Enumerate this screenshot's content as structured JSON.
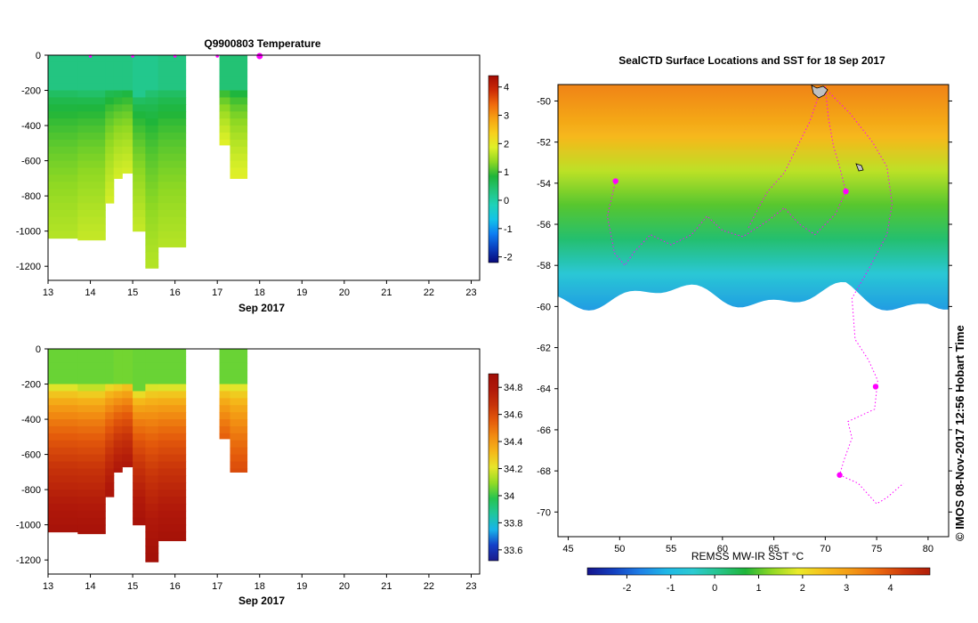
{
  "colors": {
    "temp_cmap": [
      "#08087a",
      "#0a3fbf",
      "#0d7ef2",
      "#13c3e8",
      "#1fd2b9",
      "#23c47c",
      "#1fb53a",
      "#8ed823",
      "#dff028",
      "#f7d01c",
      "#f7a313",
      "#f06a0c",
      "#cc2a06",
      "#a30b04"
    ],
    "sal_cmap": [
      "#1a1a8c",
      "#1340c8",
      "#18b4ea",
      "#20c69d",
      "#27c44f",
      "#93dc24",
      "#e7e52a",
      "#f5b719",
      "#f28c12",
      "#e45a0b",
      "#c7330a",
      "#b0180a",
      "#a00e07"
    ],
    "sst_cmap": [
      "#14148c",
      "#1440c0",
      "#1f7fe6",
      "#1fb7e6",
      "#2ccad2",
      "#27c48a",
      "#1fb53a",
      "#8fd824",
      "#eaea2a",
      "#f7be1c",
      "#f39a16",
      "#ec6b10",
      "#ce3a0b",
      "#b01e0a"
    ],
    "track": "#ff00ff",
    "land": "#c0c0c0"
  },
  "chart_data": [
    {
      "type": "heatmap",
      "title": "Q9900803  Temperature",
      "xlabel": "Sep 2017",
      "ylabel": "",
      "xlim": [
        13,
        23.2
      ],
      "ylim": [
        -1280,
        0
      ],
      "x_ticks": [
        "13",
        "14",
        "15",
        "16",
        "17",
        "18",
        "19",
        "20",
        "21",
        "22",
        "23"
      ],
      "y_ticks": [
        "0",
        "-200",
        "-400",
        "-600",
        "-800",
        "-1000",
        "-1200"
      ],
      "colorbar": {
        "min": -2.2,
        "max": 4.4,
        "ticks": [
          "-2",
          "-1",
          "0",
          "1",
          "2",
          "3",
          "4"
        ]
      },
      "profile_markers": [
        14.0,
        15.0,
        16.0,
        17.0,
        18.0
      ],
      "profiles": [
        {
          "x0": 13.0,
          "x1": 13.7,
          "depth": 1040,
          "surface": 0.3,
          "mixed_depth": 200,
          "deep": 1.6
        },
        {
          "x0": 13.7,
          "x1": 14.35,
          "depth": 1050,
          "surface": 0.3,
          "mixed_depth": 210,
          "deep": 1.7
        },
        {
          "x0": 14.35,
          "x1": 14.55,
          "depth": 840,
          "surface": 0.3,
          "mixed_depth": 190,
          "deep": 1.8
        },
        {
          "x0": 14.55,
          "x1": 14.75,
          "depth": 700,
          "surface": 0.3,
          "mixed_depth": 190,
          "deep": 1.8
        },
        {
          "x0": 14.75,
          "x1": 15.0,
          "depth": 670,
          "surface": 0.3,
          "mixed_depth": 180,
          "deep": 1.8
        },
        {
          "x0": 15.0,
          "x1": 15.3,
          "depth": 1000,
          "surface": 0.2,
          "mixed_depth": 230,
          "deep": 1.7
        },
        {
          "x0": 15.3,
          "x1": 15.6,
          "depth": 1210,
          "surface": 0.2,
          "mixed_depth": 200,
          "deep": 1.6
        },
        {
          "x0": 15.6,
          "x1": 16.25,
          "depth": 1090,
          "surface": 0.3,
          "mixed_depth": 200,
          "deep": 1.6
        },
        {
          "x0": 17.05,
          "x1": 17.3,
          "depth": 510,
          "surface": 0.4,
          "mixed_depth": 180,
          "deep": 1.9
        },
        {
          "x0": 17.3,
          "x1": 17.7,
          "depth": 700,
          "surface": 0.4,
          "mixed_depth": 190,
          "deep": 1.9
        }
      ]
    },
    {
      "type": "heatmap",
      "title": "",
      "xlabel": "Sep 2017",
      "ylabel": "",
      "xlim": [
        13,
        23.2
      ],
      "ylim": [
        -1280,
        0
      ],
      "x_ticks": [
        "13",
        "14",
        "15",
        "16",
        "17",
        "18",
        "19",
        "20",
        "21",
        "22",
        "23"
      ],
      "y_ticks": [
        "0",
        "-200",
        "-400",
        "-600",
        "-800",
        "-1000",
        "-1200"
      ],
      "colorbar": {
        "min": 33.52,
        "max": 34.9,
        "ticks": [
          "33.6",
          "33.8",
          "34",
          "34.2",
          "34.4",
          "34.6",
          "34.8"
        ]
      },
      "profiles": [
        {
          "x0": 13.0,
          "x1": 13.7,
          "depth": 1040,
          "surface": 34.05,
          "mixed_depth": 200,
          "deep": 34.85
        },
        {
          "x0": 13.7,
          "x1": 14.35,
          "depth": 1050,
          "surface": 34.05,
          "mixed_depth": 210,
          "deep": 34.85
        },
        {
          "x0": 14.35,
          "x1": 14.55,
          "depth": 840,
          "surface": 34.05,
          "mixed_depth": 190,
          "deep": 34.82
        },
        {
          "x0": 14.55,
          "x1": 14.75,
          "depth": 700,
          "surface": 34.06,
          "mixed_depth": 190,
          "deep": 34.8
        },
        {
          "x0": 14.75,
          "x1": 15.0,
          "depth": 670,
          "surface": 34.06,
          "mixed_depth": 180,
          "deep": 34.8
        },
        {
          "x0": 15.0,
          "x1": 15.3,
          "depth": 1000,
          "surface": 34.05,
          "mixed_depth": 230,
          "deep": 34.85
        },
        {
          "x0": 15.3,
          "x1": 15.6,
          "depth": 1210,
          "surface": 34.05,
          "mixed_depth": 200,
          "deep": 34.88
        },
        {
          "x0": 15.6,
          "x1": 16.25,
          "depth": 1090,
          "surface": 34.05,
          "mixed_depth": 200,
          "deep": 34.86
        },
        {
          "x0": 17.05,
          "x1": 17.3,
          "depth": 510,
          "surface": 34.05,
          "mixed_depth": 190,
          "deep": 34.55
        },
        {
          "x0": 17.3,
          "x1": 17.7,
          "depth": 700,
          "surface": 34.05,
          "mixed_depth": 190,
          "deep": 34.6
        }
      ]
    },
    {
      "type": "heatmap",
      "title": "SealCTD Surface Locations and SST for 18 Sep 2017",
      "xlabel": "",
      "ylabel": "",
      "xlim": [
        44,
        82
      ],
      "ylim": [
        -71.2,
        -49.2
      ],
      "x_ticks": [
        "45",
        "50",
        "55",
        "60",
        "65",
        "70",
        "75",
        "80"
      ],
      "y_ticks": [
        "-50",
        "-52",
        "-54",
        "-56",
        "-58",
        "-60",
        "-62",
        "-64",
        "-66",
        "-68",
        "-70"
      ],
      "colorbar": {
        "min": -2.9,
        "max": 4.9,
        "ticks": [
          "-2",
          "-1",
          "0",
          "1",
          "2",
          "3",
          "4"
        ],
        "label": "REMSS MW-IR SST °C"
      },
      "ice_edge_lat": -59.5,
      "sst_gradient": [
        {
          "lat": -49.2,
          "value": 3.4
        },
        {
          "lat": -51.5,
          "value": 2.6
        },
        {
          "lat": -53.0,
          "value": 1.6
        },
        {
          "lat": -54.5,
          "value": 1.0
        },
        {
          "lat": -56.0,
          "value": 0.3
        },
        {
          "lat": -57.5,
          "value": -0.6
        },
        {
          "lat": -59.5,
          "value": -1.5
        }
      ],
      "tracks": [
        [
          [
            70.0,
            -49.3
          ],
          [
            70.3,
            -50.8
          ],
          [
            70.8,
            -52.2
          ],
          [
            71.4,
            -53.2
          ],
          [
            72.0,
            -54.4
          ],
          [
            71.0,
            -55.5
          ],
          [
            69.0,
            -56.5
          ],
          [
            67.5,
            -56.0
          ],
          [
            66.0,
            -55.2
          ],
          [
            64.5,
            -55.8
          ],
          [
            62.0,
            -56.6
          ],
          [
            60.0,
            -56.3
          ],
          [
            58.5,
            -55.6
          ],
          [
            57.0,
            -56.5
          ],
          [
            55.0,
            -57.0
          ],
          [
            53.0,
            -56.5
          ],
          [
            51.5,
            -57.3
          ],
          [
            50.5,
            -58.0
          ],
          [
            49.5,
            -57.4
          ],
          [
            48.8,
            -55.6
          ],
          [
            49.6,
            -53.9
          ]
        ],
        [
          [
            69.6,
            -49.4
          ],
          [
            68.5,
            -51.0
          ],
          [
            67.2,
            -52.3
          ],
          [
            66.0,
            -53.5
          ],
          [
            64.4,
            -54.4
          ],
          [
            63.5,
            -55.2
          ],
          [
            62.5,
            -56.2
          ]
        ],
        [
          [
            70.4,
            -49.6
          ],
          [
            72.4,
            -50.6
          ],
          [
            74.6,
            -52.0
          ],
          [
            76.0,
            -53.2
          ],
          [
            76.5,
            -55.0
          ],
          [
            76.0,
            -56.5
          ],
          [
            74.2,
            -58.2
          ],
          [
            72.6,
            -59.6
          ],
          [
            72.9,
            -61.6
          ],
          [
            74.2,
            -62.6
          ],
          [
            75.1,
            -63.6
          ],
          [
            74.8,
            -65.0
          ],
          [
            72.2,
            -65.6
          ],
          [
            72.6,
            -66.4
          ],
          [
            71.8,
            -67.5
          ],
          [
            71.4,
            -68.2
          ],
          [
            73.2,
            -68.6
          ],
          [
            75.0,
            -69.6
          ],
          [
            76.0,
            -69.3
          ],
          [
            77.6,
            -68.6
          ]
        ]
      ],
      "surface_locations": [
        [
          49.6,
          -53.9
        ],
        [
          71.4,
          -68.2
        ],
        [
          74.9,
          -63.9
        ],
        [
          72.0,
          -54.4
        ]
      ]
    }
  ],
  "footer": {
    "timestamp": "© IMOS 08-Nov-2017 12:56 Hobart Time"
  }
}
